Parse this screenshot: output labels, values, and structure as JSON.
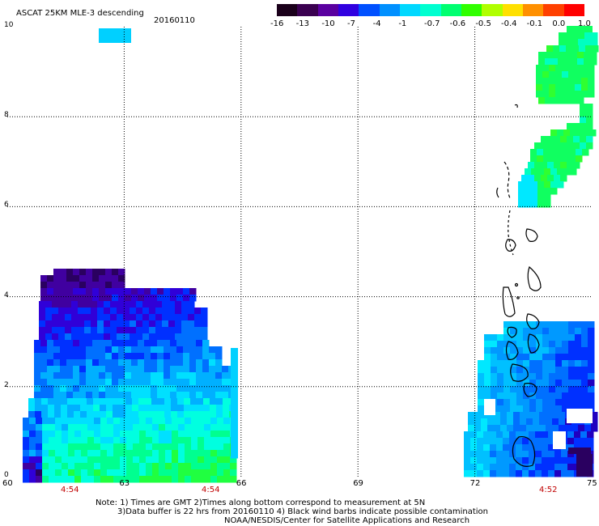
{
  "header": {
    "title": "ASCAT 25KM MLE-3 descending",
    "date": "20160110"
  },
  "colorbar": {
    "labels": [
      "-16",
      "-13",
      "-10",
      "-7",
      "-4",
      "-1",
      "-0.7",
      "-0.6",
      "-0.5",
      "-0.4",
      "-0.1",
      "0.0",
      "1.0"
    ],
    "colors": [
      "#1a001a",
      "#3a0050",
      "#5a00a0",
      "#3000e0",
      "#0050ff",
      "#0090ff",
      "#00d8ff",
      "#00ffd0",
      "#00ff70",
      "#30ff00",
      "#b0ff00",
      "#ffe000",
      "#ff9000",
      "#ff4000",
      "#ff0000"
    ]
  },
  "axes": {
    "x_ticks": [
      "60",
      "63",
      "66",
      "69",
      "72",
      "75"
    ],
    "y_ticks": [
      "0",
      "2",
      "4",
      "6",
      "8",
      "10"
    ],
    "x_range": [
      60,
      75
    ],
    "y_range": [
      0,
      10
    ]
  },
  "time_labels": [
    "4:54",
    "4:54",
    "4:52"
  ],
  "notes": {
    "line1": "Note: 1) Times are GMT 2)Times along bottom correspond to measurement at 5N",
    "line2": "3)Data buffer is 22 hrs from 20160110 4) Black wind barbs indicate possible contamination",
    "line3": "NOAA/NESDIS/Center for Satellite Applications and Research"
  },
  "swaths": {
    "west_palette": [
      "#2a0060",
      "#4000a0",
      "#3000d8",
      "#0030ff",
      "#0070ff",
      "#00b0ff",
      "#00e0ff",
      "#00ffe0",
      "#00ff90",
      "#20ff40"
    ],
    "east_palette": [
      "#2a0060",
      "#2000c0",
      "#0030ff",
      "#0070ff",
      "#0099ff",
      "#00c0ff",
      "#00e8ff",
      "#00ffc0",
      "#10ff60",
      "#30ff30"
    ]
  }
}
